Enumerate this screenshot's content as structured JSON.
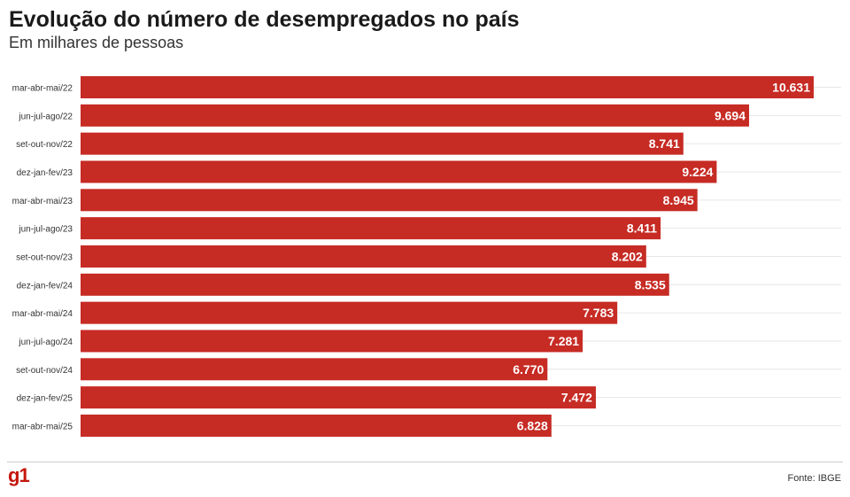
{
  "header": {
    "title": "Evolução do número de desempregados no país",
    "subtitle": "Em milhares de pessoas"
  },
  "footer": {
    "logo": "g1",
    "source": "Fonte: IBGE"
  },
  "colors": {
    "bar": "#c62b24",
    "grid": "#e6e6e6"
  },
  "chart_data": {
    "type": "bar",
    "orientation": "horizontal",
    "title": "Evolução do número de desempregados no país",
    "subtitle": "Em milhares de pessoas",
    "categories": [
      "mar-abr-mai/22",
      "jun-jul-ago/22",
      "set-out-nov/22",
      "dez-jan-fev/23",
      "mar-abr-mai/23",
      "jun-jul-ago/23",
      "set-out-nov/23",
      "dez-jan-fev/24",
      "mar-abr-mai/24",
      "jun-jul-ago/24",
      "set-out-nov/24",
      "dez-jan-fev/25",
      "mar-abr-mai/25"
    ],
    "values": [
      10631,
      9694,
      8741,
      9224,
      8945,
      8411,
      8202,
      8535,
      7783,
      7281,
      6770,
      7472,
      6828
    ],
    "value_labels": [
      "10.631",
      "9.694",
      "8.741",
      "9.224",
      "8.945",
      "8.411",
      "8.202",
      "8.535",
      "7.783",
      "7.281",
      "6.770",
      "7.472",
      "6.828"
    ],
    "xlim": [
      0,
      10631
    ],
    "grid": true,
    "legend": "none"
  }
}
